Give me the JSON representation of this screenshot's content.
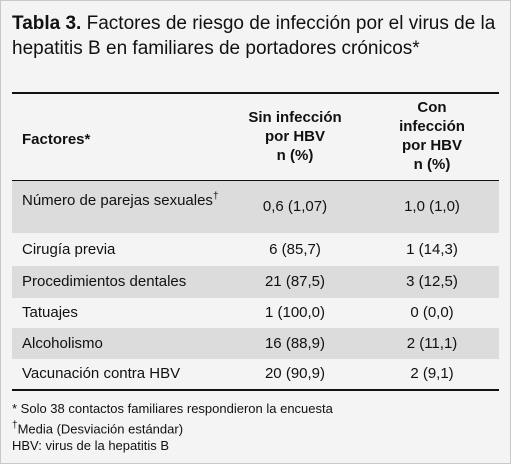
{
  "title": {
    "label": "Tabla 3.",
    "text": "Factores de riesgo de infección por el virus de la hepatitis B en familiares de portadores crónicos*"
  },
  "table": {
    "header": [
      "Factores*",
      [
        "Sin infección",
        "por HBV",
        "n (%)"
      ],
      [
        "Con",
        "infección",
        "por HBV",
        "n (%)"
      ]
    ],
    "rows": [
      [
        {
          "text": "Número de parejas sexuales",
          "sup": "†"
        },
        "0,6 (1,07)",
        "1,0 (1,0)"
      ],
      [
        "Cirugía previa",
        "6 (85,7)",
        "1 (14,3)"
      ],
      [
        "Procedimientos dentales",
        "21 (87,5)",
        "3 (12,5)"
      ],
      [
        "Tatuajes",
        "1 (100,0)",
        "0 (0,0)"
      ],
      [
        "Alcoholismo",
        "16 (88,9)",
        "2 (11,1)"
      ],
      [
        "Vacunación contra HBV",
        "20 (90,9)",
        "2 (9,1)"
      ]
    ]
  },
  "footnotes": [
    "* Solo 38 contactos familiares respondieron la encuesta",
    {
      "sup": "†",
      "text": "Media (Desviación estándar)"
    },
    "HBV: virus de la hepatitis B"
  ]
}
